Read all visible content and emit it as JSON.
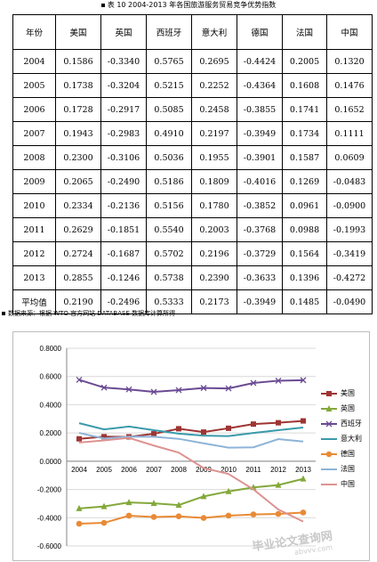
{
  "caption": "表 10  2004-2013 年各国旅游服务贸易竞争优势指数",
  "table": {
    "headers": [
      "年份",
      "美国",
      "英国",
      "西班牙",
      "意大利",
      "德国",
      "法国",
      "中国"
    ],
    "rows": [
      [
        "2004",
        "0.1586",
        "-0.3340",
        "0.5765",
        "0.2695",
        "-0.4424",
        "0.2005",
        "0.1320"
      ],
      [
        "2005",
        "0.1738",
        "-0.3204",
        "0.5215",
        "0.2252",
        "-0.4364",
        "0.1608",
        "0.1476"
      ],
      [
        "2006",
        "0.1728",
        "-0.2917",
        "0.5085",
        "0.2458",
        "-0.3855",
        "0.1741",
        "0.1652"
      ],
      [
        "2007",
        "0.1943",
        "-0.2983",
        "0.4910",
        "0.2197",
        "-0.3949",
        "0.1734",
        "0.1111"
      ],
      [
        "2008",
        "0.2300",
        "-0.3106",
        "0.5036",
        "0.1955",
        "-0.3901",
        "0.1587",
        "0.0609"
      ],
      [
        "2009",
        "0.2065",
        "-0.2490",
        "0.5186",
        "0.1809",
        "-0.4016",
        "0.1269",
        "-0.0483"
      ],
      [
        "2010",
        "0.2334",
        "-0.2136",
        "0.5156",
        "0.1780",
        "-0.3852",
        "0.0961",
        "-0.0900"
      ],
      [
        "2011",
        "0.2629",
        "-0.1851",
        "0.5540",
        "0.2003",
        "-0.3768",
        "0.0988",
        "-0.1993"
      ],
      [
        "2012",
        "0.2724",
        "-0.1687",
        "0.5702",
        "0.2196",
        "-0.3729",
        "0.1564",
        "-0.3419"
      ],
      [
        "2013",
        "0.2855",
        "-0.1246",
        "0.5738",
        "0.2390",
        "-0.3633",
        "0.1396",
        "-0.4272"
      ],
      [
        "平均值",
        "0.2190",
        "-0.2496",
        "0.5333",
        "0.2173",
        "-0.3949",
        "0.1485",
        "-0.0490"
      ]
    ]
  },
  "source": "数据来源：根据 WTO 官方网站 DATABASE 数据库计算所得",
  "watermark": "毕业论文查询网",
  "watermark_url": "abvvv.com",
  "colors": {
    "美国": "#9e3533",
    "英国": "#83a83a",
    "西班牙": "#6a4a93",
    "意大利": "#3a9aab",
    "德国": "#e98a35",
    "法国": "#8db4d8",
    "中国": "#dd9391"
  },
  "chart_data": {
    "type": "line",
    "x": [
      2004,
      2005,
      2006,
      2007,
      2008,
      2009,
      2010,
      2011,
      2012,
      2013
    ],
    "ylim": [
      -0.6,
      0.8
    ],
    "yticks": [
      "0.8000",
      "0.6000",
      "0.4000",
      "0.2000",
      "0.0000",
      "-0.2000",
      "-0.4000",
      "-0.6000"
    ],
    "grid": true,
    "legend_position": "right",
    "series": [
      {
        "name": "美国",
        "marker": "square",
        "values": [
          0.1586,
          0.1738,
          0.1728,
          0.1943,
          0.23,
          0.2065,
          0.2334,
          0.2629,
          0.2724,
          0.2855
        ]
      },
      {
        "name": "英国",
        "marker": "triangle",
        "values": [
          -0.334,
          -0.3204,
          -0.2917,
          -0.2983,
          -0.3106,
          -0.249,
          -0.2136,
          -0.1851,
          -0.1687,
          -0.1246
        ]
      },
      {
        "name": "西班牙",
        "marker": "x",
        "values": [
          0.5765,
          0.5215,
          0.5085,
          0.491,
          0.5036,
          0.5186,
          0.5156,
          0.554,
          0.5702,
          0.5738
        ]
      },
      {
        "name": "意大利",
        "marker": "none",
        "values": [
          0.2695,
          0.2252,
          0.2458,
          0.2197,
          0.1955,
          0.1809,
          0.178,
          0.2003,
          0.2196,
          0.239
        ]
      },
      {
        "name": "德国",
        "marker": "circle",
        "values": [
          -0.4424,
          -0.4364,
          -0.3855,
          -0.3949,
          -0.3901,
          -0.4016,
          -0.3852,
          -0.3768,
          -0.3729,
          -0.3633
        ]
      },
      {
        "name": "法国",
        "marker": "none",
        "values": [
          0.2005,
          0.1608,
          0.1741,
          0.1734,
          0.1587,
          0.1269,
          0.0961,
          0.0988,
          0.1564,
          0.1396
        ]
      },
      {
        "name": "中国",
        "marker": "none",
        "values": [
          0.132,
          0.1476,
          0.1652,
          0.1111,
          0.0609,
          -0.0483,
          -0.09,
          -0.1993,
          -0.3419,
          -0.4272
        ]
      }
    ]
  }
}
